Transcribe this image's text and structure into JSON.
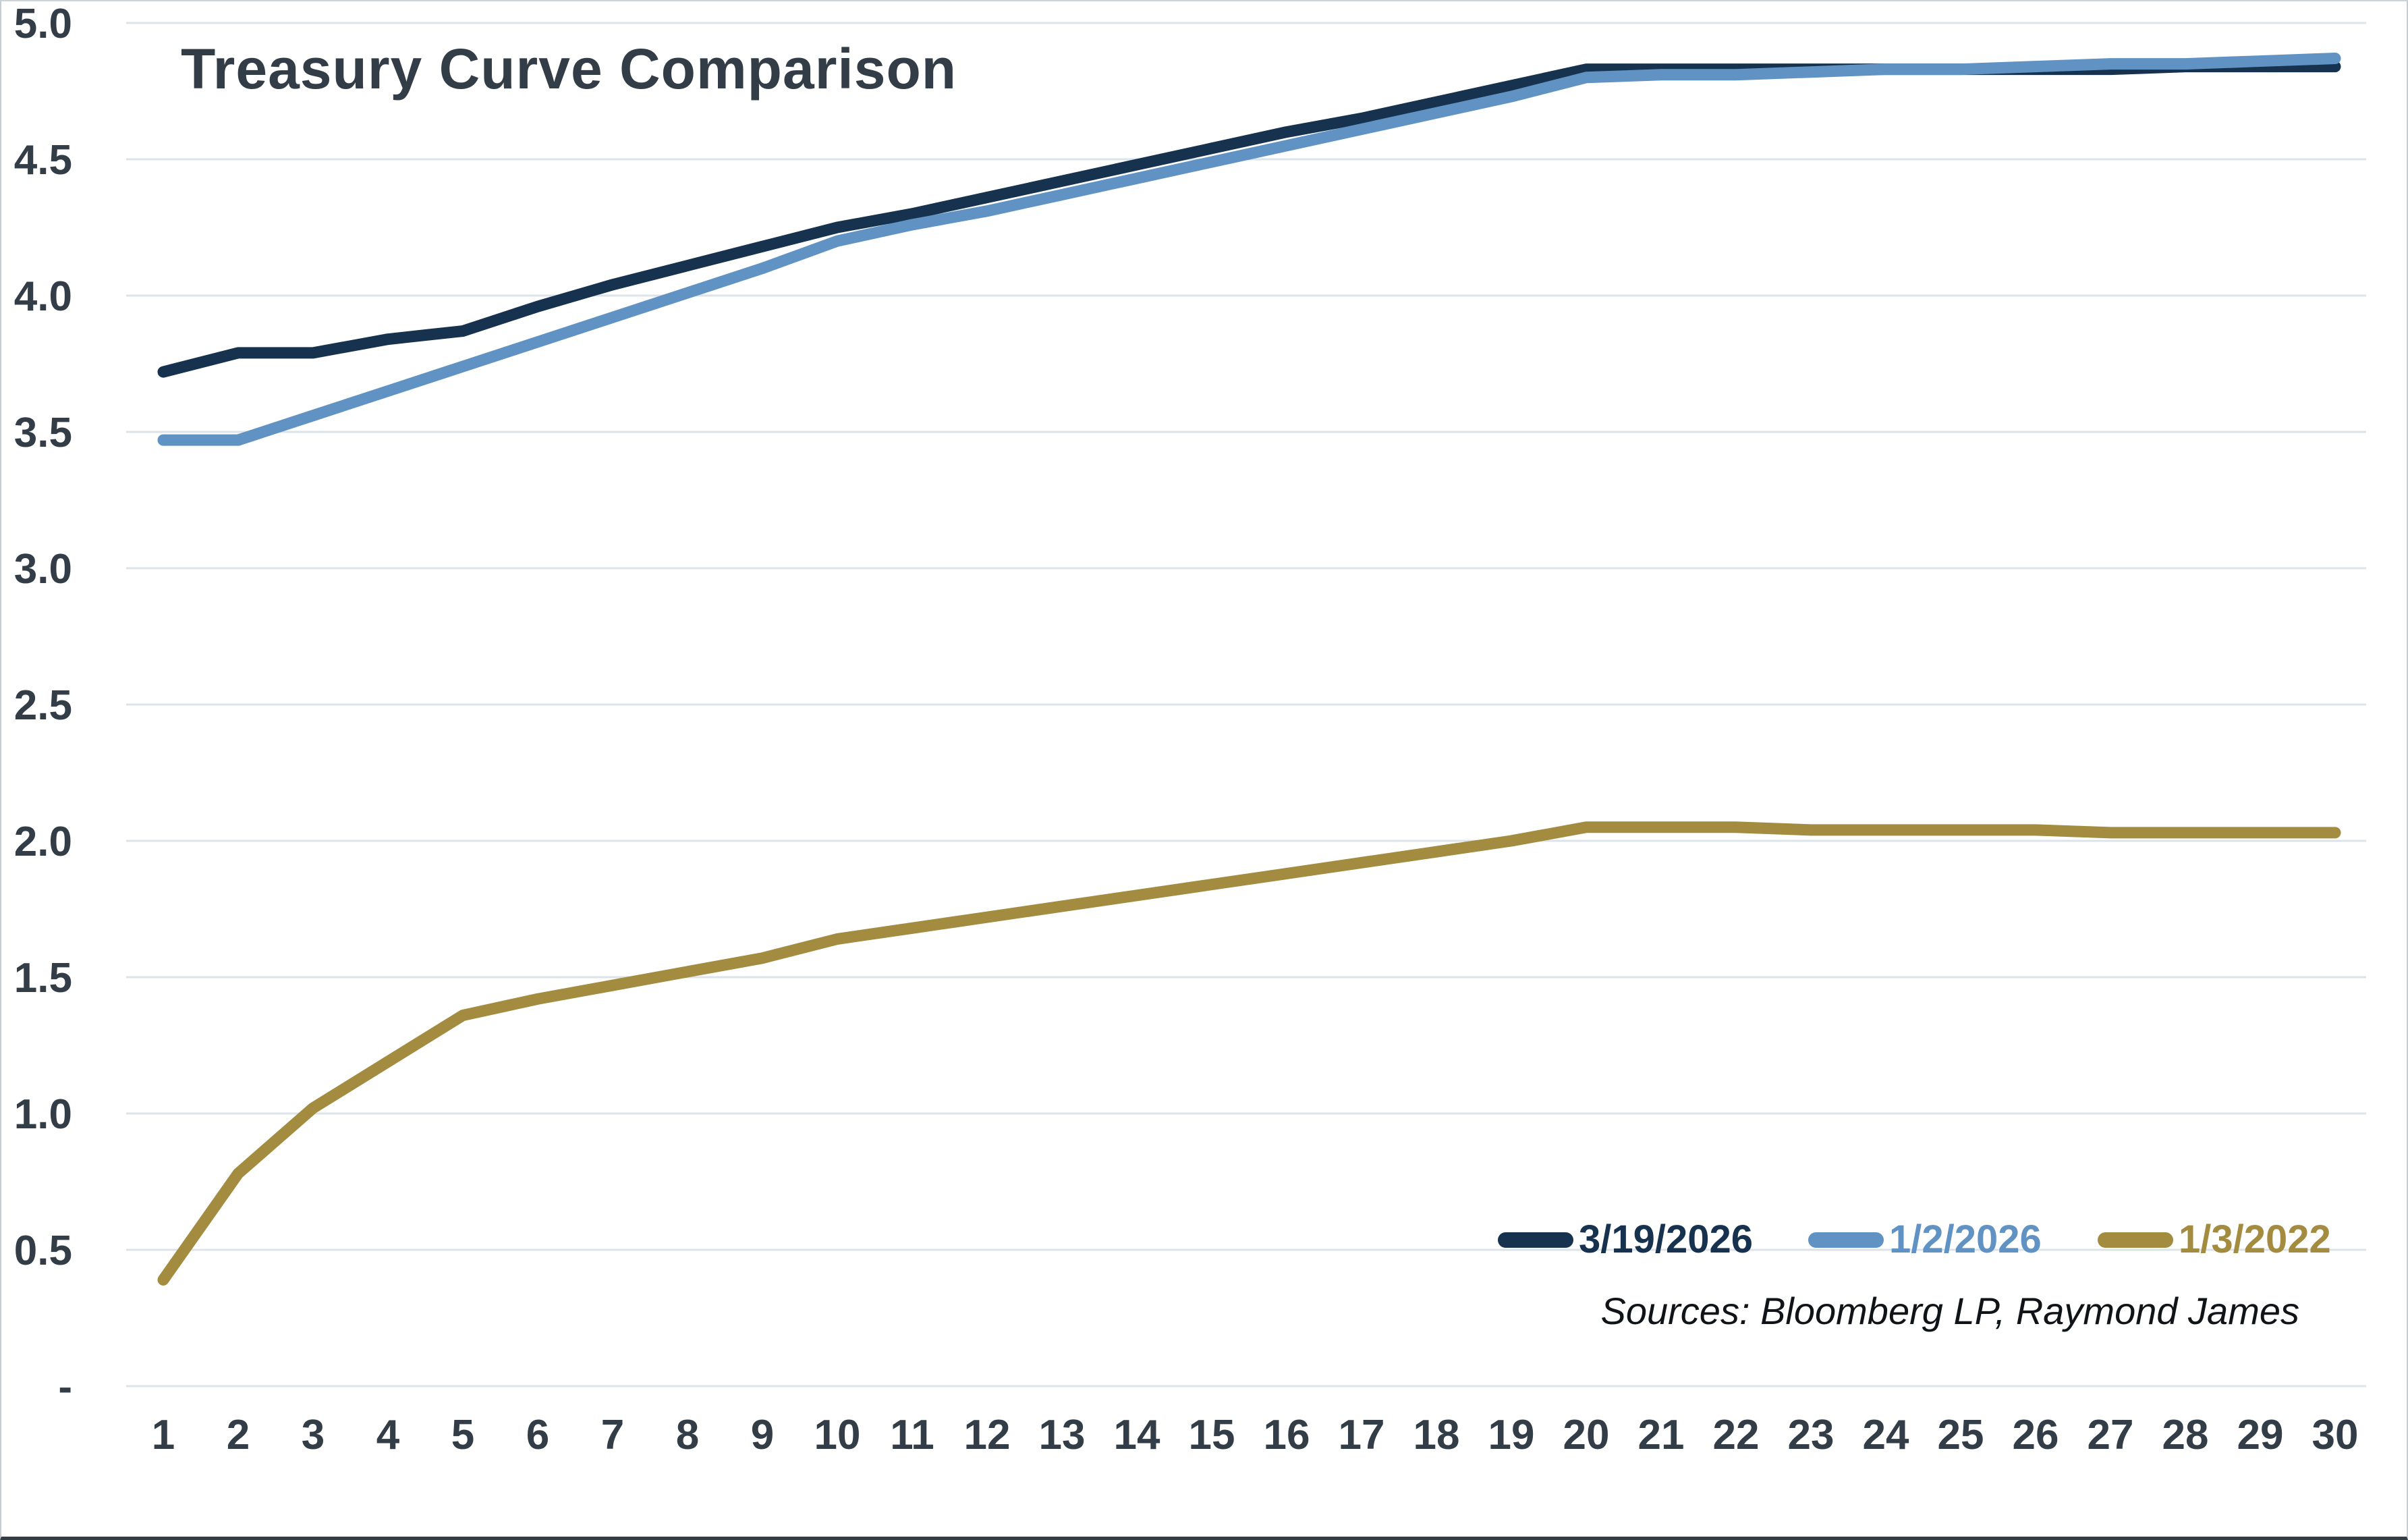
{
  "chart_data": {
    "type": "line",
    "title": "Treasury Curve Comparison",
    "xlabel": "",
    "ylabel": "",
    "x": [
      1,
      2,
      3,
      4,
      5,
      6,
      7,
      8,
      9,
      10,
      11,
      12,
      13,
      14,
      15,
      16,
      17,
      18,
      19,
      20,
      21,
      22,
      23,
      24,
      25,
      26,
      27,
      28,
      29,
      30
    ],
    "x_tick_labels": [
      "1",
      "2",
      "3",
      "4",
      "5",
      "6",
      "7",
      "8",
      "9",
      "10",
      "11",
      "12",
      "13",
      "14",
      "15",
      "16",
      "17",
      "18",
      "19",
      "20",
      "21",
      "22",
      "23",
      "24",
      "25",
      "26",
      "27",
      "28",
      "29",
      "30"
    ],
    "ylim": [
      0,
      5
    ],
    "y_ticks": [
      5.0,
      4.5,
      4.0,
      3.5,
      3.0,
      2.5,
      2.0,
      1.5,
      1.0,
      0.5,
      0.0
    ],
    "y_tick_labels": [
      "5.0",
      "4.5",
      "4.0",
      "3.5",
      "3.0",
      "2.5",
      "2.0",
      "1.5",
      "1.0",
      "0.5",
      "-"
    ],
    "grid": "horizontal",
    "gridline_color": "#dce3e9",
    "axis_text_color": "#333d47",
    "legend_position": "inside-bottom-right",
    "series": [
      {
        "name": "3/19/2026",
        "color": "#16324f",
        "values": [
          3.72,
          3.79,
          3.79,
          3.84,
          3.87,
          3.96,
          4.04,
          4.11,
          4.18,
          4.25,
          4.3,
          4.36,
          4.42,
          4.48,
          4.54,
          4.6,
          4.65,
          4.71,
          4.77,
          4.83,
          4.83,
          4.83,
          4.83,
          4.83,
          4.83,
          4.83,
          4.83,
          4.84,
          4.84,
          4.84
        ]
      },
      {
        "name": "1/2/2026",
        "color": "#6093c3",
        "values": [
          3.47,
          3.47,
          3.56,
          3.65,
          3.74,
          3.83,
          3.92,
          4.01,
          4.1,
          4.2,
          4.26,
          4.31,
          4.37,
          4.43,
          4.49,
          4.55,
          4.61,
          4.67,
          4.73,
          4.8,
          4.81,
          4.81,
          4.82,
          4.83,
          4.83,
          4.84,
          4.85,
          4.85,
          4.86,
          4.87
        ]
      },
      {
        "name": "1/3/2022",
        "color": "#a38c3f",
        "values": [
          0.39,
          0.78,
          1.02,
          1.19,
          1.36,
          1.42,
          1.47,
          1.52,
          1.57,
          1.64,
          1.68,
          1.72,
          1.76,
          1.8,
          1.84,
          1.88,
          1.92,
          1.96,
          2.0,
          2.05,
          2.05,
          2.05,
          2.04,
          2.04,
          2.04,
          2.04,
          2.03,
          2.03,
          2.03,
          2.03
        ]
      }
    ],
    "source_note": "Sources: Bloomberg LP, Raymond James"
  }
}
